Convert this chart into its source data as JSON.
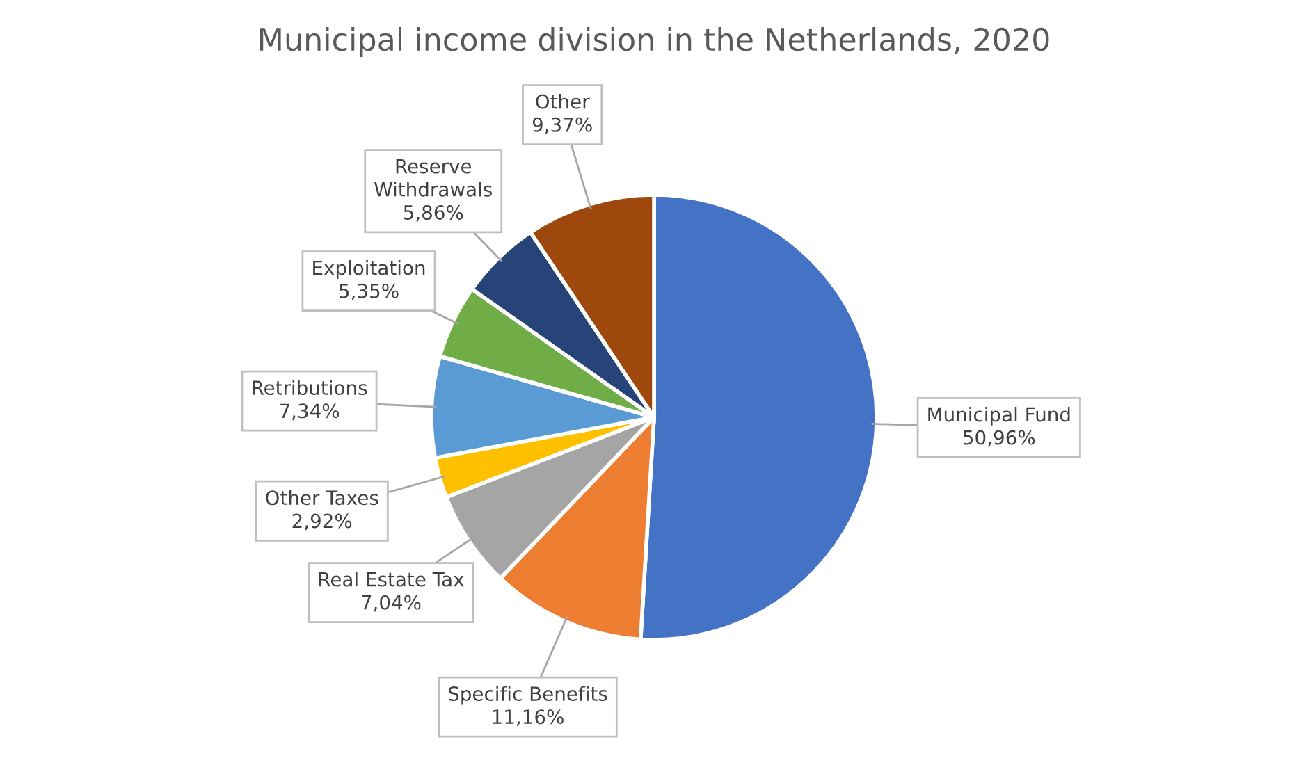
{
  "chart_data": {
    "type": "pie",
    "title": "Municipal income division in the Netherlands, 2020",
    "categories": [
      "Municipal Fund",
      "Specific Benefits",
      "Real Estate Tax",
      "Other Taxes",
      "Retributions",
      "Exploitation",
      "Reserve Withdrawals",
      "Other"
    ],
    "values": [
      50.96,
      11.16,
      7.04,
      2.92,
      7.34,
      5.35,
      5.86,
      9.37
    ],
    "colors": [
      "#4472c4",
      "#ed7d31",
      "#a5a5a5",
      "#ffc000",
      "#5b9bd5",
      "#70ad47",
      "#264478",
      "#9e480e"
    ],
    "value_labels": [
      "50,96%",
      "11,16%",
      "7,04%",
      "2,92%",
      "7,34%",
      "5,35%",
      "5,86%",
      "9,37%"
    ]
  }
}
